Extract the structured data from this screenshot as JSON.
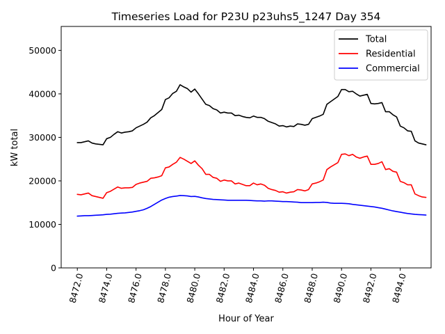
{
  "chart_data": {
    "type": "line",
    "title": "Timeseries Load for P23U p23uhs5_1247  Day 354",
    "xlabel": "Hour of Year",
    "ylabel": "kW total",
    "xlim": [
      8470.9,
      8496.1
    ],
    "ylim": [
      0,
      55500
    ],
    "x_ticks": [
      8472,
      8474,
      8476,
      8478,
      8480,
      8482,
      8484,
      8486,
      8488,
      8490,
      8492,
      8494
    ],
    "x_tick_labels": [
      "8472.0",
      "8474.0",
      "8476.0",
      "8478.0",
      "8480.0",
      "8482.0",
      "8484.0",
      "8486.0",
      "8488.0",
      "8490.0",
      "8492.0",
      "8494.0"
    ],
    "y_ticks": [
      0,
      10000,
      20000,
      30000,
      40000,
      50000
    ],
    "y_tick_labels": [
      "0",
      "10000",
      "20000",
      "30000",
      "40000",
      "50000"
    ],
    "x_start": 8472.0,
    "x_step": 0.25,
    "legend_position": "top-right",
    "series": [
      {
        "name": "Total",
        "color": "#000000",
        "values": [
          28800,
          28800,
          29000,
          29200,
          28700,
          28500,
          28400,
          28300,
          29700,
          30000,
          30700,
          31300,
          31000,
          31200,
          31300,
          31500,
          32200,
          32600,
          33000,
          33500,
          34500,
          35000,
          35700,
          36400,
          38700,
          39100,
          40100,
          40600,
          42100,
          41600,
          41200,
          40400,
          41100,
          40000,
          38800,
          37600,
          37300,
          36600,
          36300,
          35600,
          35800,
          35600,
          35600,
          35000,
          35100,
          34800,
          34600,
          34500,
          34900,
          34600,
          34600,
          34300,
          33700,
          33400,
          33100,
          32600,
          32700,
          32400,
          32600,
          32500,
          33100,
          33000,
          32800,
          33000,
          34300,
          34600,
          34900,
          35300,
          37600,
          38200,
          38800,
          39400,
          41000,
          41000,
          40500,
          40600,
          40000,
          39500,
          39700,
          39900,
          37800,
          37700,
          37800,
          38000,
          35900,
          35900,
          35200,
          34700,
          32600,
          32200,
          31500,
          31400,
          29200,
          28700,
          28500,
          28300
        ]
      },
      {
        "name": "Residential",
        "color": "#ff0000",
        "values": [
          16900,
          16800,
          17000,
          17200,
          16600,
          16400,
          16200,
          16000,
          17300,
          17600,
          18100,
          18600,
          18300,
          18400,
          18400,
          18500,
          19200,
          19500,
          19700,
          19900,
          20600,
          20700,
          20900,
          21200,
          23000,
          23200,
          23800,
          24300,
          25400,
          25000,
          24500,
          24000,
          24600,
          23600,
          22800,
          21500,
          21500,
          20800,
          20600,
          19900,
          20200,
          20000,
          20000,
          19300,
          19500,
          19200,
          18900,
          18900,
          19500,
          19100,
          19300,
          19000,
          18300,
          18000,
          17800,
          17400,
          17500,
          17200,
          17400,
          17500,
          18000,
          17900,
          17700,
          18000,
          19300,
          19500,
          19800,
          20200,
          22600,
          23200,
          23700,
          24200,
          26100,
          26200,
          25800,
          26100,
          25500,
          25200,
          25500,
          25700,
          23800,
          23800,
          24000,
          24400,
          22600,
          22800,
          22200,
          22000,
          19900,
          19600,
          19100,
          19100,
          17000,
          16600,
          16300,
          16200
        ]
      },
      {
        "name": "Commercial",
        "color": "#0000ff",
        "values": [
          11900,
          11950,
          12000,
          12000,
          12050,
          12100,
          12150,
          12200,
          12300,
          12350,
          12450,
          12550,
          12600,
          12650,
          12750,
          12850,
          13000,
          13150,
          13350,
          13700,
          14100,
          14600,
          15100,
          15600,
          15950,
          16250,
          16400,
          16500,
          16650,
          16600,
          16550,
          16400,
          16450,
          16300,
          16100,
          15950,
          15850,
          15750,
          15700,
          15650,
          15600,
          15550,
          15550,
          15550,
          15550,
          15550,
          15550,
          15500,
          15450,
          15400,
          15400,
          15350,
          15400,
          15400,
          15350,
          15300,
          15250,
          15250,
          15200,
          15150,
          15100,
          15000,
          15000,
          15000,
          15000,
          15050,
          15050,
          15100,
          15050,
          14900,
          14850,
          14850,
          14850,
          14800,
          14750,
          14600,
          14500,
          14400,
          14300,
          14200,
          14100,
          14000,
          13850,
          13700,
          13500,
          13300,
          13100,
          12950,
          12800,
          12650,
          12500,
          12400,
          12300,
          12250,
          12200,
          12150
        ]
      }
    ]
  }
}
